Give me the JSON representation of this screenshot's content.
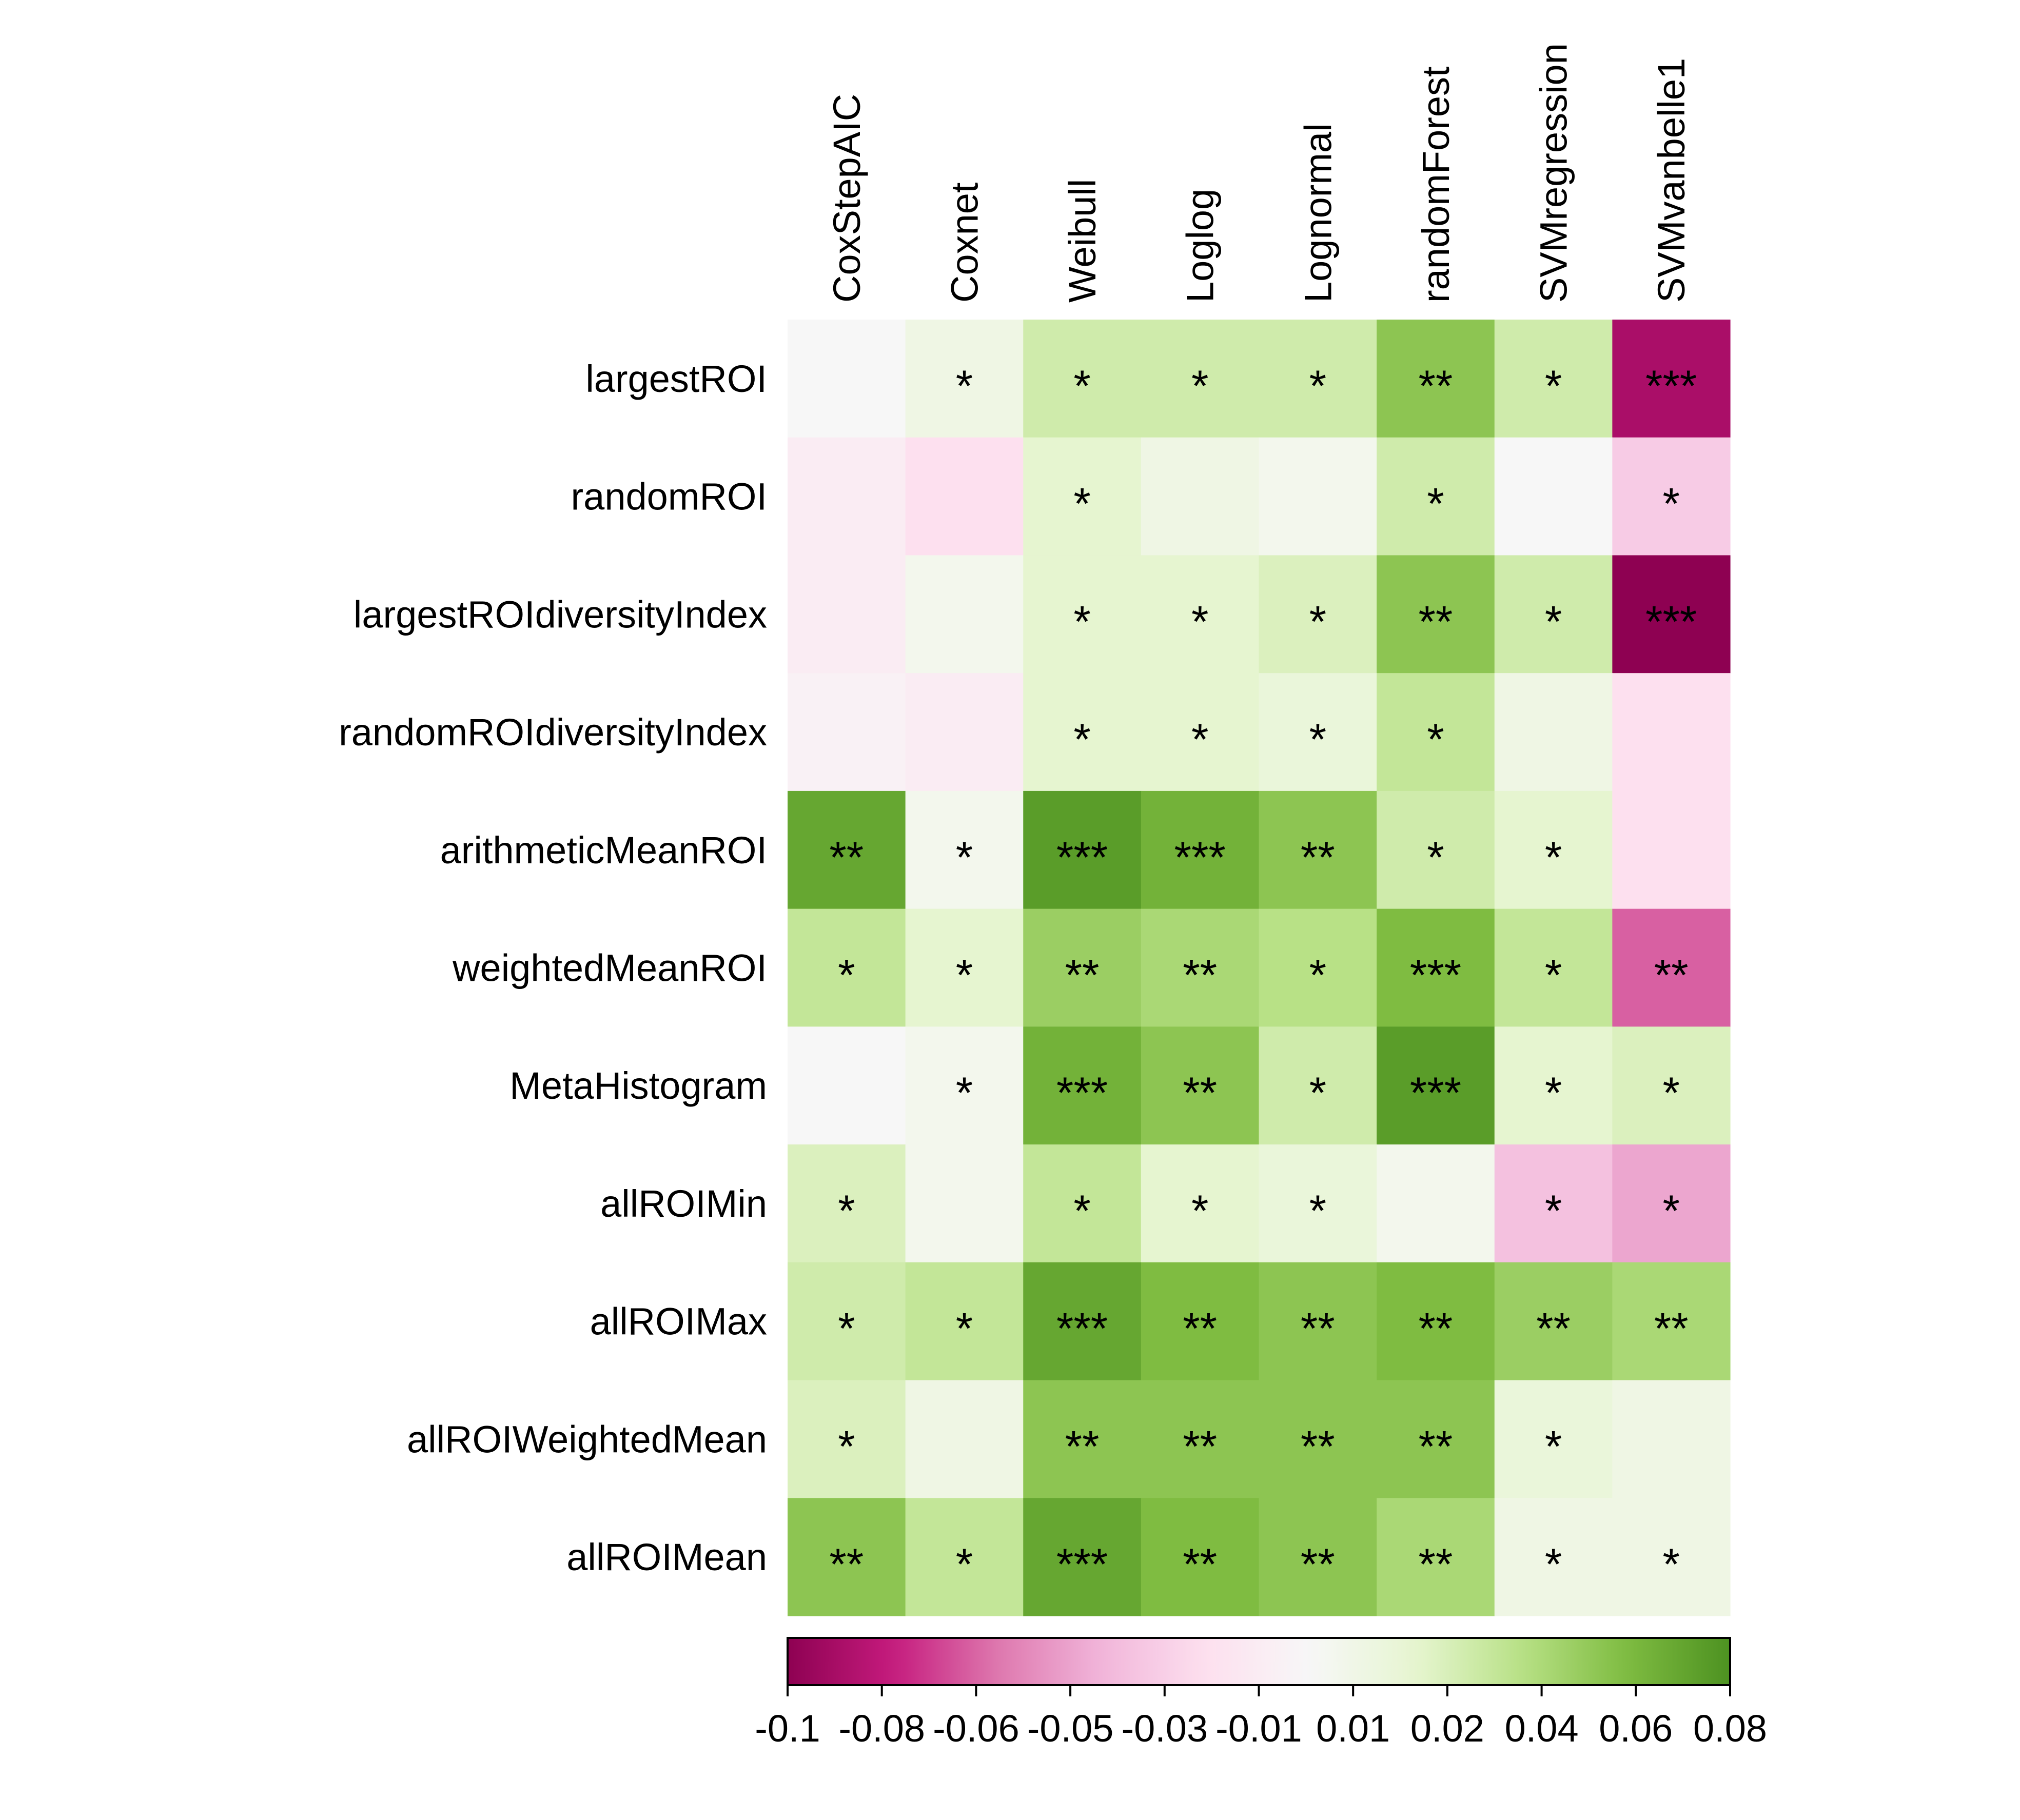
{
  "chart_data": {
    "type": "heatmap",
    "columns": [
      "CoxStepAIC",
      "Coxnet",
      "Weibull",
      "Loglog",
      "Lognormal",
      "randomForest",
      "SVMregression",
      "SVMvanbelle1"
    ],
    "rows": [
      "largestROI",
      "randomROI",
      "largestROIdiversityIndex",
      "randomROIdiversityIndex",
      "arithmeticMeanROI",
      "weightedMeanROI",
      "MetaHistogram",
      "allROIMin",
      "allROIMax",
      "allROIWeightedMean",
      "allROIMean"
    ],
    "values": [
      [
        0.0,
        0.01,
        0.03,
        0.03,
        0.03,
        0.055,
        0.03,
        -0.09
      ],
      [
        -0.01,
        -0.02,
        0.02,
        0.01,
        0.005,
        0.03,
        0.0,
        -0.03
      ],
      [
        -0.01,
        0.005,
        0.02,
        0.02,
        0.025,
        0.055,
        0.03,
        -0.1
      ],
      [
        -0.005,
        -0.01,
        0.02,
        0.02,
        0.015,
        0.035,
        0.01,
        -0.02
      ],
      [
        0.07,
        0.005,
        0.075,
        0.065,
        0.055,
        0.03,
        0.02,
        -0.02
      ],
      [
        0.035,
        0.02,
        0.05,
        0.045,
        0.04,
        0.06,
        0.035,
        -0.065
      ],
      [
        0.0,
        0.005,
        0.065,
        0.055,
        0.03,
        0.075,
        0.02,
        0.025
      ],
      [
        0.025,
        0.005,
        0.035,
        0.02,
        0.015,
        0.005,
        -0.035,
        -0.045
      ],
      [
        0.03,
        0.035,
        0.07,
        0.06,
        0.055,
        0.06,
        0.05,
        0.045
      ],
      [
        0.025,
        0.01,
        0.055,
        0.055,
        0.055,
        0.055,
        0.015,
        0.01
      ],
      [
        0.055,
        0.035,
        0.07,
        0.06,
        0.055,
        0.045,
        0.01,
        0.01
      ]
    ],
    "significance": [
      [
        "",
        "*",
        "*",
        "*",
        "*",
        "**",
        "*",
        "***"
      ],
      [
        "",
        "",
        "*",
        "",
        "",
        "*",
        "",
        "*"
      ],
      [
        "",
        "",
        "*",
        "*",
        "*",
        "**",
        "*",
        "***"
      ],
      [
        "",
        "",
        "*",
        "*",
        "*",
        "*",
        "",
        ""
      ],
      [
        "**",
        "*",
        "***",
        "***",
        "**",
        "*",
        "*",
        ""
      ],
      [
        "*",
        "*",
        "**",
        "**",
        "*",
        "***",
        "*",
        "**"
      ],
      [
        "",
        "*",
        "***",
        "**",
        "*",
        "***",
        "*",
        "*"
      ],
      [
        "*",
        "",
        "*",
        "*",
        "*",
        "",
        "*",
        "*"
      ],
      [
        "*",
        "*",
        "***",
        "**",
        "**",
        "**",
        "**",
        "**"
      ],
      [
        "*",
        "",
        "**",
        "**",
        "**",
        "**",
        "*",
        ""
      ],
      [
        "**",
        "*",
        "***",
        "**",
        "**",
        "**",
        "*",
        "*"
      ]
    ],
    "colorbar": {
      "range": [
        -0.1,
        0.08
      ],
      "tick_values": [
        -0.1,
        -0.08,
        -0.06,
        -0.05,
        -0.03,
        -0.01,
        0.01,
        0.02,
        0.04,
        0.06,
        0.08
      ],
      "tick_labels": [
        "-0.1",
        "-0.08",
        "-0.06",
        "-0.05",
        "-0.03",
        "-0.01",
        "0.01",
        "0.02",
        "0.04",
        "0.06",
        "0.08"
      ],
      "colors": [
        "#8e0152",
        "#c51b7d",
        "#de77ae",
        "#f1b6da",
        "#fde0ef",
        "#f7f7f7",
        "#e6f5d0",
        "#b8e186",
        "#7fbc41",
        "#4d9221"
      ]
    },
    "legend_placement": "bottom",
    "grid": false
  }
}
